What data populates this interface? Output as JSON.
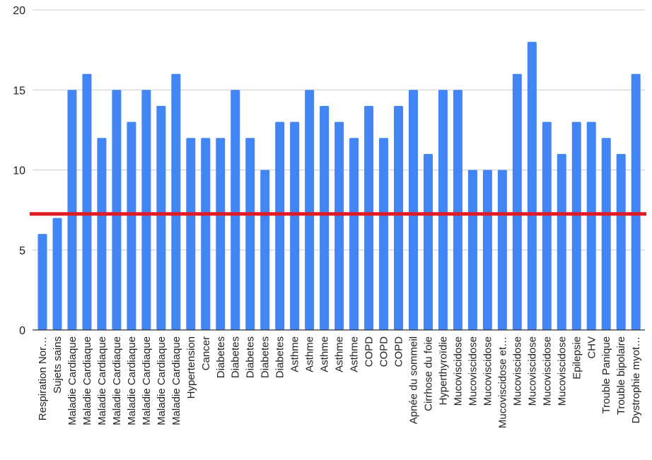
{
  "chart_data": {
    "type": "bar",
    "title": "",
    "xlabel": "",
    "ylabel": "",
    "ylim": [
      0,
      20
    ],
    "yticks": [
      "0",
      "5",
      "10",
      "15",
      "20"
    ],
    "grid": true,
    "categories": [
      "Respiration Nor…",
      "Sujets sains",
      "Maladie Cardiaque",
      "Maladie Cardiaque",
      "Maladie Cardiaque",
      "Maladie Cardiaque",
      "Maladie Cardiaque",
      "Maladie Cardiaque",
      "Maladie Cardiaque",
      "Maladie Cardiaque",
      "Hypertension",
      "Cancer",
      "Diabetes",
      "Diabetes",
      "Diabetes",
      "Diabetes",
      "Diabetes",
      "Asthme",
      "Asthme",
      "Asthme",
      "Asthme",
      "Asthme",
      "COPD",
      "COPD",
      "COPD",
      "Apnée du sommeil",
      "Cirrhose du foie",
      "Hyperthyroïdie",
      "Mucoviscidose",
      "Mucoviscidose",
      "Mucoviscidose",
      "Mucoviscidose et…",
      "Mucoviscidose",
      "Mucoviscidose",
      "Mucoviscidose",
      "Mucoviscidose",
      "Epilepsie",
      "CHV",
      "Trouble Panique",
      "Trouble bipolaire",
      "Dystrophie myot…"
    ],
    "values": [
      6,
      7,
      15,
      16,
      12,
      15,
      13,
      15,
      14,
      16,
      12,
      12,
      12,
      15,
      12,
      10,
      13,
      13,
      15,
      14,
      13,
      12,
      14,
      12,
      14,
      15,
      11,
      15,
      15,
      10,
      10,
      10,
      16,
      18,
      13,
      11,
      13,
      13,
      12,
      11,
      16
    ],
    "reference_line": {
      "value": 7.25,
      "color": "#e01b24"
    },
    "colors": {
      "bar": "#4285f4",
      "grid": "#cccccc",
      "axis": "#333333"
    }
  }
}
